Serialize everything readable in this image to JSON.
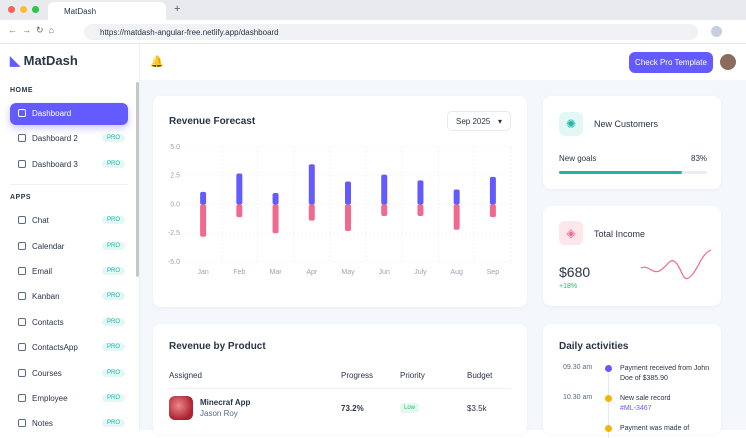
{
  "browser": {
    "tab_title": "MatDash",
    "url": "https://matdash-angular-free.netlify.app/dashboard"
  },
  "sidebar": {
    "logo": "MatDash",
    "sections": [
      {
        "title": "HOME",
        "items": [
          {
            "label": "Dashboard"
          },
          {
            "label": "Dashboard 2",
            "badge": "PRO"
          },
          {
            "label": "Dashboard 3",
            "badge": "PRO"
          }
        ]
      },
      {
        "title": "APPS",
        "items": [
          {
            "label": "Chat",
            "badge": "PRO"
          },
          {
            "label": "Calendar",
            "badge": "PRO"
          },
          {
            "label": "Email",
            "badge": "PRO"
          },
          {
            "label": "Kanban",
            "badge": "PRO"
          },
          {
            "label": "Contacts",
            "badge": "PRO"
          },
          {
            "label": "ContactsApp",
            "badge": "PRO"
          },
          {
            "label": "Courses",
            "badge": "PRO"
          },
          {
            "label": "Employee",
            "badge": "PRO"
          },
          {
            "label": "Notes",
            "badge": "PRO"
          }
        ]
      }
    ]
  },
  "header": {
    "button": "Check Pro Template"
  },
  "revenue_forecast": {
    "title": "Revenue Forecast",
    "period": "Sep 2025",
    "chart": {
      "type": "bar",
      "categories": [
        "Jan",
        "Feb",
        "Mar",
        "Apr",
        "May",
        "Jun",
        "July",
        "Aug",
        "Sep"
      ],
      "series": [
        {
          "color": "#635bff",
          "values": [
            1.1,
            2.7,
            1.0,
            3.5,
            2.0,
            2.6,
            2.1,
            1.3,
            2.4
          ]
        },
        {
          "color": "#f06a8f",
          "values": [
            -2.8,
            -1.1,
            -2.5,
            -1.4,
            -2.3,
            -1.0,
            -1.0,
            -2.2,
            -1.1
          ]
        }
      ],
      "ylim": [
        -5,
        5
      ],
      "yticks": [
        {
          "value": 5,
          "label": "5.0"
        },
        {
          "value": 2.5,
          "label": "2.5"
        },
        {
          "value": 0,
          "label": "0.0"
        },
        {
          "value": -2.5,
          "label": "-2.5"
        },
        {
          "value": -5,
          "label": "-5.0"
        }
      ]
    }
  },
  "new_customers": {
    "title": "New Customers",
    "goal_label": "New goals",
    "goal_value": 83,
    "goal_value_label": "83%"
  },
  "total_income": {
    "title": "Total Income",
    "value": "$680",
    "change": "+18%"
  },
  "revenue_by_product": {
    "title": "Revenue by Product",
    "columns": [
      "Assigned",
      "Progress",
      "Priority",
      "Budget"
    ],
    "rows": [
      {
        "product": "Minecraf App",
        "assignee": "Jason Roy",
        "progress": "73.2%",
        "priority": "Low",
        "budget": "$3.5k"
      }
    ]
  },
  "daily_activities": {
    "title": "Daily activities",
    "items": [
      {
        "time": "09.30 am",
        "text": "Payment received from John Doe of $385.90"
      },
      {
        "time": "10.30 am",
        "text": "New sale record",
        "link": "#ML-3467"
      },
      {
        "text": "Payment was made of"
      }
    ]
  }
}
